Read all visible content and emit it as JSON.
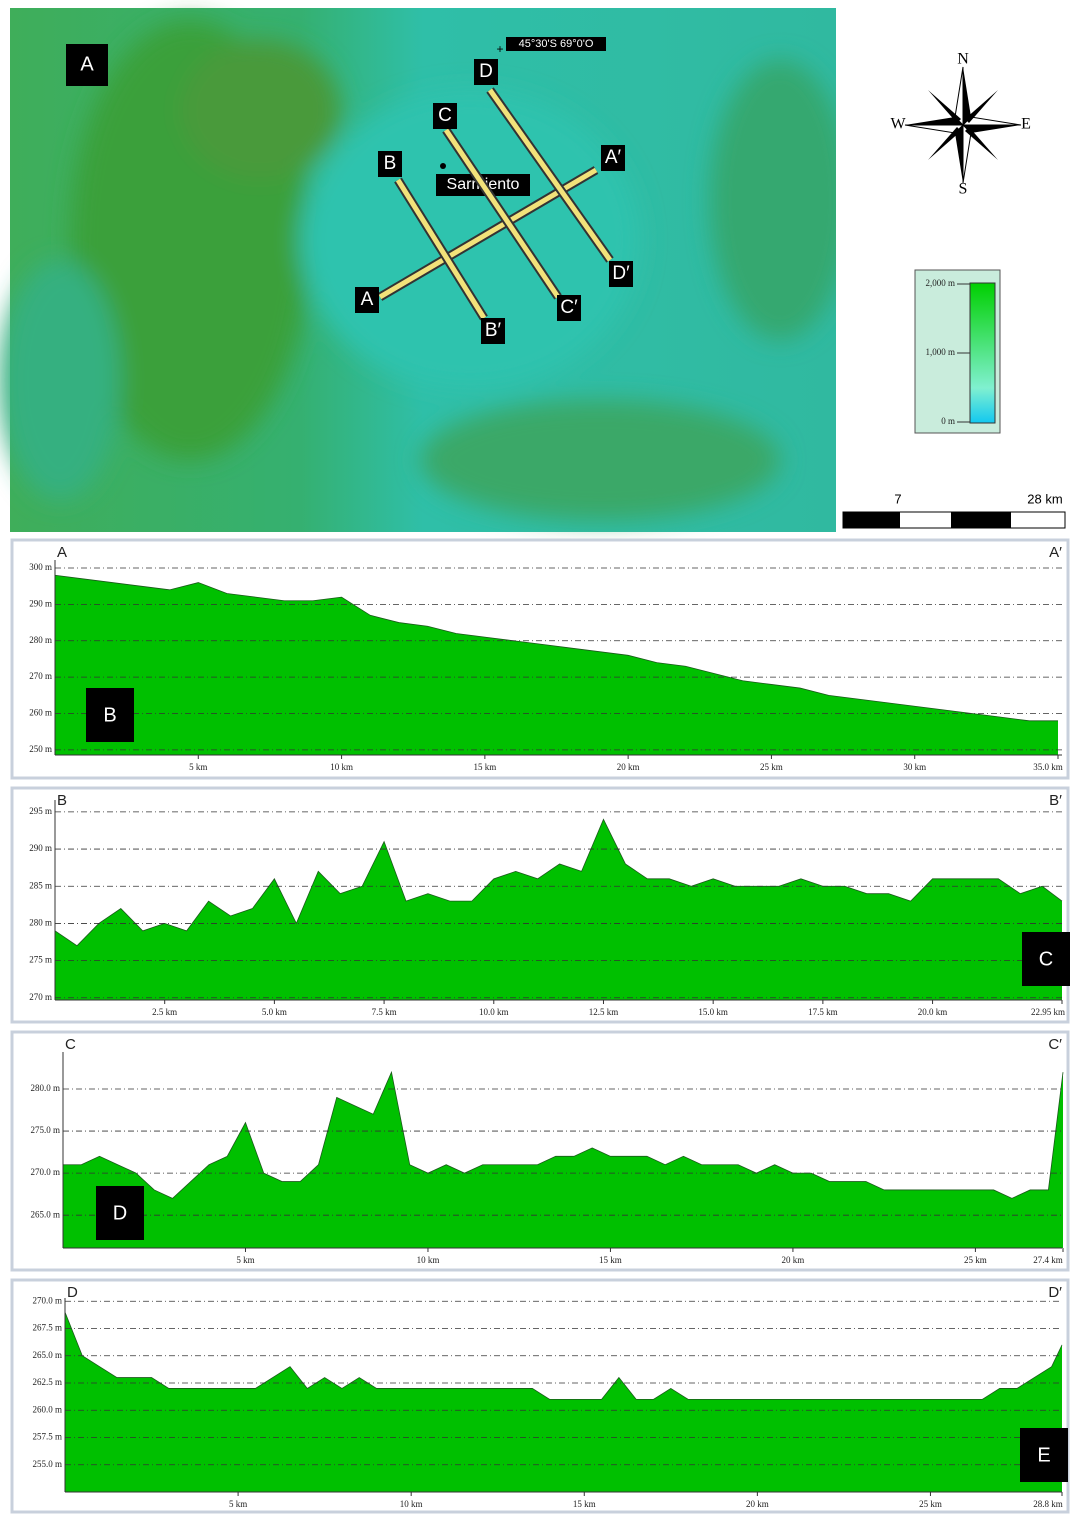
{
  "map": {
    "panel_label": "A",
    "coordinate": "45°30'S 69°0'O",
    "town": "Sarmiento",
    "transects": [
      [
        "A",
        "A′"
      ],
      [
        "B",
        "B′"
      ],
      [
        "C",
        "C′"
      ],
      [
        "D",
        "D′"
      ]
    ],
    "compass": {
      "n": "N",
      "s": "S",
      "w": "W",
      "e": "E"
    },
    "elevation_legend": [
      "2,000 m",
      "1,000 m",
      "0 m"
    ],
    "scale": [
      "7",
      "28 km"
    ]
  },
  "chart_data": [
    {
      "type": "area",
      "panel_label": "B",
      "start_label": "A",
      "end_label": "A′",
      "color": "#00c000",
      "x": [
        0,
        1,
        2,
        3,
        4,
        5,
        6,
        7,
        8,
        9,
        10,
        11,
        12,
        13,
        14,
        15,
        16,
        17,
        18,
        19,
        20,
        21,
        22,
        23,
        24,
        25,
        26,
        27,
        28,
        29,
        30,
        31,
        32,
        33,
        34,
        35
      ],
      "values": [
        298,
        297,
        296,
        295,
        294,
        296,
        293,
        292,
        291,
        291,
        292,
        287,
        285,
        284,
        282,
        281,
        280,
        279,
        278,
        277,
        276,
        274,
        273,
        271,
        269,
        268,
        267,
        265,
        264,
        263,
        262,
        261,
        260,
        259,
        258,
        258
      ],
      "xlim": [
        0,
        35
      ],
      "ylim": [
        248.6,
        302.2
      ],
      "xticks": [
        {
          "value": 5,
          "label": "5 km"
        },
        {
          "value": 10,
          "label": "10 km"
        },
        {
          "value": 15,
          "label": "15 km"
        },
        {
          "value": 20,
          "label": "20 km"
        },
        {
          "value": 25,
          "label": "25 km"
        },
        {
          "value": 30,
          "label": "30 km"
        },
        {
          "value": 35,
          "label": "35.0 km"
        }
      ],
      "yticks": [
        {
          "value": 250,
          "label": "250 m"
        },
        {
          "value": 260,
          "label": "260 m"
        },
        {
          "value": 270,
          "label": "270 m"
        },
        {
          "value": 280,
          "label": "280 m"
        },
        {
          "value": 290,
          "label": "290 m"
        },
        {
          "value": 300,
          "label": "300 m"
        }
      ]
    },
    {
      "type": "area",
      "panel_label": "C",
      "start_label": "B",
      "end_label": "B′",
      "color": "#00c000",
      "x": [
        0,
        0.5,
        1,
        1.5,
        2,
        2.5,
        3,
        3.5,
        4,
        4.5,
        5,
        5.5,
        6,
        6.5,
        7,
        7.5,
        8,
        8.5,
        9,
        9.5,
        10,
        10.5,
        11,
        11.5,
        12,
        12.5,
        13,
        13.5,
        14,
        14.5,
        15,
        15.5,
        16,
        16.5,
        17,
        17.5,
        18,
        18.5,
        19,
        19.5,
        20,
        20.5,
        21,
        21.5,
        22,
        22.5,
        22.95
      ],
      "values": [
        279,
        277,
        280,
        282,
        279,
        280,
        279,
        283,
        281,
        282,
        286,
        280,
        287,
        284,
        285,
        291,
        283,
        284,
        283,
        283,
        286,
        287,
        286,
        288,
        287,
        294,
        288,
        286,
        286,
        285,
        286,
        285,
        285,
        285,
        286,
        285,
        285,
        284,
        284,
        283,
        286,
        286,
        286,
        286,
        284,
        285,
        283
      ],
      "xlim": [
        0,
        22.95
      ],
      "ylim": [
        269.7,
        296.6
      ],
      "xticks": [
        {
          "value": 2.5,
          "label": "2.5 km"
        },
        {
          "value": 5,
          "label": "5.0 km"
        },
        {
          "value": 7.5,
          "label": "7.5 km"
        },
        {
          "value": 10,
          "label": "10.0 km"
        },
        {
          "value": 12.5,
          "label": "12.5 km"
        },
        {
          "value": 15,
          "label": "15.0 km"
        },
        {
          "value": 17.5,
          "label": "17.5 km"
        },
        {
          "value": 20,
          "label": "20.0 km"
        },
        {
          "value": 22.95,
          "label": "22.95 km"
        }
      ],
      "yticks": [
        {
          "value": 270,
          "label": "270 m"
        },
        {
          "value": 275,
          "label": "275 m"
        },
        {
          "value": 280,
          "label": "280 m"
        },
        {
          "value": 285,
          "label": "285 m"
        },
        {
          "value": 290,
          "label": "290 m"
        },
        {
          "value": 295,
          "label": "295 m"
        }
      ]
    },
    {
      "type": "area",
      "panel_label": "D",
      "start_label": "C",
      "end_label": "C′",
      "color": "#00c000",
      "x": [
        0,
        0.5,
        1,
        1.5,
        2,
        2.5,
        3,
        3.5,
        4,
        4.5,
        5,
        5.5,
        6,
        6.5,
        7,
        7.5,
        8,
        8.5,
        9,
        9.5,
        10,
        10.5,
        11,
        11.5,
        12,
        12.5,
        13,
        13.5,
        14,
        14.5,
        15,
        15.5,
        16,
        16.5,
        17,
        17.5,
        18,
        18.5,
        19,
        19.5,
        20,
        20.5,
        21,
        21.5,
        22,
        22.5,
        23,
        23.5,
        24,
        24.5,
        25,
        25.5,
        26,
        26.5,
        27,
        27.4
      ],
      "values": [
        271,
        271,
        272,
        271,
        270,
        268,
        267,
        269,
        271,
        272,
        276,
        270,
        269,
        269,
        271,
        279,
        278,
        277,
        282,
        271,
        270,
        271,
        270,
        271,
        271,
        271,
        271,
        272,
        272,
        273,
        272,
        272,
        272,
        271,
        272,
        271,
        271,
        271,
        270,
        271,
        270,
        270,
        269,
        269,
        269,
        268,
        268,
        268,
        268,
        268,
        268,
        268,
        267,
        268,
        268,
        282
      ],
      "xlim": [
        0,
        27.4
      ],
      "ylim": [
        261.1,
        284.4
      ],
      "xticks": [
        {
          "value": 5,
          "label": "5 km"
        },
        {
          "value": 10,
          "label": "10 km"
        },
        {
          "value": 15,
          "label": "15 km"
        },
        {
          "value": 20,
          "label": "20 km"
        },
        {
          "value": 25,
          "label": "25 km"
        },
        {
          "value": 27.4,
          "label": "27.4 km"
        }
      ],
      "yticks": [
        {
          "value": 265,
          "label": "265.0 m"
        },
        {
          "value": 270,
          "label": "270.0 m"
        },
        {
          "value": 275,
          "label": "275.0 m"
        },
        {
          "value": 280,
          "label": "280.0 m"
        }
      ]
    },
    {
      "type": "area",
      "panel_label": "E",
      "start_label": "D",
      "end_label": "D′",
      "color": "#00c000",
      "x": [
        0,
        0.5,
        1,
        1.5,
        2,
        2.5,
        3,
        3.5,
        4,
        4.5,
        5,
        5.5,
        6,
        6.5,
        7,
        7.5,
        8,
        8.5,
        9,
        9.5,
        10,
        10.5,
        11,
        11.5,
        12,
        12.5,
        13,
        13.5,
        14,
        14.5,
        15,
        15.5,
        16,
        16.5,
        17,
        17.5,
        18,
        18.5,
        19,
        19.5,
        20,
        20.5,
        21,
        21.5,
        22,
        22.5,
        23,
        23.5,
        24,
        24.5,
        25,
        25.5,
        26,
        26.5,
        27,
        27.5,
        28,
        28.5,
        28.8
      ],
      "values": [
        269,
        265,
        264,
        263,
        263,
        263,
        262,
        262,
        262,
        262,
        262,
        262,
        263,
        264,
        262,
        263,
        262,
        263,
        262,
        262,
        262,
        262,
        262,
        262,
        262,
        262,
        262,
        262,
        261,
        261,
        261,
        261,
        263,
        261,
        261,
        262,
        261,
        261,
        261,
        261,
        261,
        261,
        261,
        261,
        261,
        261,
        261,
        261,
        261,
        261,
        261,
        261,
        261,
        261,
        262,
        262,
        263,
        264,
        266
      ],
      "xlim": [
        0,
        28.8
      ],
      "ylim": [
        252.5,
        270.3
      ],
      "xticks": [
        {
          "value": 5,
          "label": "5 km"
        },
        {
          "value": 10,
          "label": "10 km"
        },
        {
          "value": 15,
          "label": "15 km"
        },
        {
          "value": 20,
          "label": "20 km"
        },
        {
          "value": 25,
          "label": "25 km"
        },
        {
          "value": 28.8,
          "label": "28.8 km"
        }
      ],
      "yticks": [
        {
          "value": 255,
          "label": "255.0 m"
        },
        {
          "value": 257.5,
          "label": "257.5 m"
        },
        {
          "value": 260,
          "label": "260.0 m"
        },
        {
          "value": 262.5,
          "label": "262.5 m"
        },
        {
          "value": 265,
          "label": "265.0 m"
        },
        {
          "value": 267.5,
          "label": "267.5 m"
        },
        {
          "value": 270,
          "label": "270.0 m"
        }
      ]
    }
  ]
}
